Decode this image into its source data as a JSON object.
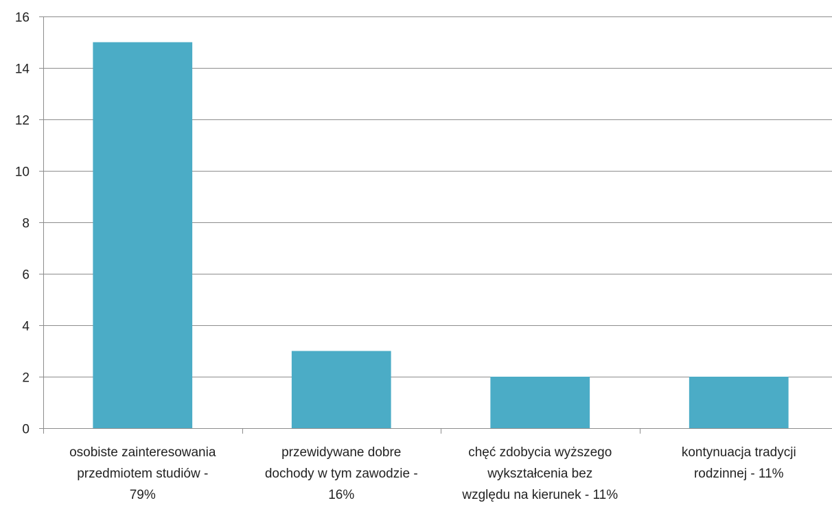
{
  "chart_data": {
    "type": "bar",
    "title": "",
    "xlabel": "",
    "ylabel": "",
    "categories": [
      [
        "osobiste zainteresowania",
        "przedmiotem studiów -",
        "79%"
      ],
      [
        "przewidywane dobre",
        "dochody w tym zawodzie -",
        "16%"
      ],
      [
        "chęć zdobycia wyższego",
        "wykształcenia bez",
        "względu na kierunek - 11%"
      ],
      [
        "kontynuacja tradycji",
        "rodzinnej - 11%"
      ]
    ],
    "values": [
      15,
      3,
      2,
      2
    ],
    "ylim": [
      0,
      16
    ],
    "yticks": [
      0,
      2,
      4,
      6,
      8,
      10,
      12,
      14,
      16
    ],
    "grid": true,
    "bar_color": "#4BACC6",
    "grid_color": "#8C8C8C"
  }
}
